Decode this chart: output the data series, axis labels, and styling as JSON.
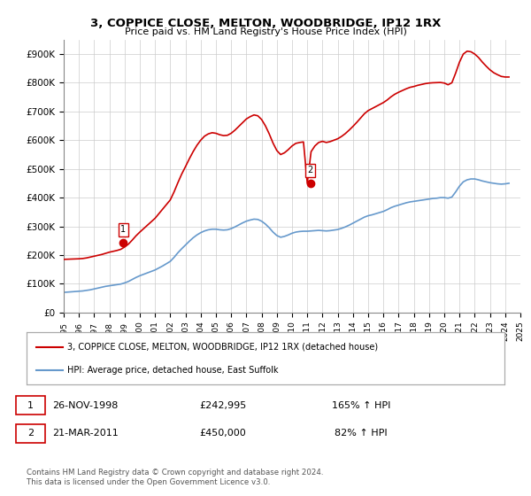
{
  "title": "3, COPPICE CLOSE, MELTON, WOODBRIDGE, IP12 1RX",
  "subtitle": "Price paid vs. HM Land Registry's House Price Index (HPI)",
  "xlabel": "",
  "ylabel": "",
  "ylim": [
    0,
    950000
  ],
  "yticks": [
    0,
    100000,
    200000,
    300000,
    400000,
    500000,
    600000,
    700000,
    800000,
    900000
  ],
  "ytick_labels": [
    "£0",
    "£100K",
    "£200K",
    "£300K",
    "£400K",
    "£500K",
    "£600K",
    "£700K",
    "£800K",
    "£900K"
  ],
  "hpi_color": "#6699cc",
  "price_color": "#cc0000",
  "marker_color": "#cc0000",
  "background_color": "#ffffff",
  "grid_color": "#cccccc",
  "legend_entries": [
    "3, COPPICE CLOSE, MELTON, WOODBRIDGE, IP12 1RX (detached house)",
    "HPI: Average price, detached house, East Suffolk"
  ],
  "sale1_label": "1",
  "sale1_date": "26-NOV-1998",
  "sale1_price": "£242,995",
  "sale1_hpi": "165% ↑ HPI",
  "sale2_label": "2",
  "sale2_date": "21-MAR-2011",
  "sale2_price": "£450,000",
  "sale2_hpi": "82% ↑ HPI",
  "footnote": "Contains HM Land Registry data © Crown copyright and database right 2024.\nThis data is licensed under the Open Government Licence v3.0.",
  "hpi_data": {
    "years": [
      1995.0,
      1995.25,
      1995.5,
      1995.75,
      1996.0,
      1996.25,
      1996.5,
      1996.75,
      1997.0,
      1997.25,
      1997.5,
      1997.75,
      1998.0,
      1998.25,
      1998.5,
      1998.75,
      1999.0,
      1999.25,
      1999.5,
      1999.75,
      2000.0,
      2000.25,
      2000.5,
      2000.75,
      2001.0,
      2001.25,
      2001.5,
      2001.75,
      2002.0,
      2002.25,
      2002.5,
      2002.75,
      2003.0,
      2003.25,
      2003.5,
      2003.75,
      2004.0,
      2004.25,
      2004.5,
      2004.75,
      2005.0,
      2005.25,
      2005.5,
      2005.75,
      2006.0,
      2006.25,
      2006.5,
      2006.75,
      2007.0,
      2007.25,
      2007.5,
      2007.75,
      2008.0,
      2008.25,
      2008.5,
      2008.75,
      2009.0,
      2009.25,
      2009.5,
      2009.75,
      2010.0,
      2010.25,
      2010.5,
      2010.75,
      2011.0,
      2011.25,
      2011.5,
      2011.75,
      2012.0,
      2012.25,
      2012.5,
      2012.75,
      2013.0,
      2013.25,
      2013.5,
      2013.75,
      2014.0,
      2014.25,
      2014.5,
      2014.75,
      2015.0,
      2015.25,
      2015.5,
      2015.75,
      2016.0,
      2016.25,
      2016.5,
      2016.75,
      2017.0,
      2017.25,
      2017.5,
      2017.75,
      2018.0,
      2018.25,
      2018.5,
      2018.75,
      2019.0,
      2019.25,
      2019.5,
      2019.75,
      2020.0,
      2020.25,
      2020.5,
      2020.75,
      2021.0,
      2021.25,
      2021.5,
      2021.75,
      2022.0,
      2022.25,
      2022.5,
      2022.75,
      2023.0,
      2023.25,
      2023.5,
      2023.75,
      2024.0,
      2024.25
    ],
    "values": [
      70000,
      71000,
      72000,
      73000,
      74000,
      75000,
      77000,
      79000,
      82000,
      85000,
      88000,
      91000,
      93000,
      95000,
      97000,
      99000,
      103000,
      108000,
      115000,
      122000,
      128000,
      133000,
      138000,
      143000,
      148000,
      155000,
      162000,
      170000,
      178000,
      192000,
      208000,
      222000,
      235000,
      248000,
      260000,
      270000,
      278000,
      284000,
      288000,
      290000,
      290000,
      288000,
      287000,
      288000,
      292000,
      298000,
      305000,
      312000,
      318000,
      322000,
      325000,
      324000,
      318000,
      308000,
      295000,
      280000,
      268000,
      262000,
      265000,
      270000,
      276000,
      280000,
      282000,
      283000,
      283000,
      284000,
      285000,
      286000,
      285000,
      284000,
      285000,
      287000,
      289000,
      293000,
      298000,
      304000,
      311000,
      318000,
      325000,
      332000,
      337000,
      340000,
      344000,
      348000,
      352000,
      358000,
      365000,
      370000,
      374000,
      378000,
      382000,
      385000,
      387000,
      389000,
      391000,
      393000,
      395000,
      397000,
      398000,
      400000,
      400000,
      398000,
      402000,
      420000,
      440000,
      455000,
      462000,
      465000,
      465000,
      462000,
      458000,
      455000,
      452000,
      450000,
      448000,
      447000,
      448000,
      450000
    ]
  },
  "price_data": {
    "years": [
      1995.0,
      1995.25,
      1995.5,
      1995.75,
      1996.0,
      1996.25,
      1996.5,
      1996.75,
      1997.0,
      1997.25,
      1997.5,
      1997.75,
      1998.0,
      1998.25,
      1998.5,
      1998.75,
      1999.0,
      1999.25,
      1999.5,
      1999.75,
      2000.0,
      2000.25,
      2000.5,
      2000.75,
      2001.0,
      2001.25,
      2001.5,
      2001.75,
      2002.0,
      2002.25,
      2002.5,
      2002.75,
      2003.0,
      2003.25,
      2003.5,
      2003.75,
      2004.0,
      2004.25,
      2004.5,
      2004.75,
      2005.0,
      2005.25,
      2005.5,
      2005.75,
      2006.0,
      2006.25,
      2006.5,
      2006.75,
      2007.0,
      2007.25,
      2007.5,
      2007.75,
      2008.0,
      2008.25,
      2008.5,
      2008.75,
      2009.0,
      2009.25,
      2009.5,
      2009.75,
      2010.0,
      2010.25,
      2010.5,
      2010.75,
      2011.0,
      2011.25,
      2011.5,
      2011.75,
      2012.0,
      2012.25,
      2012.5,
      2012.75,
      2013.0,
      2013.25,
      2013.5,
      2013.75,
      2014.0,
      2014.25,
      2014.5,
      2014.75,
      2015.0,
      2015.25,
      2015.5,
      2015.75,
      2016.0,
      2016.25,
      2016.5,
      2016.75,
      2017.0,
      2017.25,
      2017.5,
      2017.75,
      2018.0,
      2018.25,
      2018.5,
      2018.75,
      2019.0,
      2019.25,
      2019.5,
      2019.75,
      2020.0,
      2020.25,
      2020.5,
      2020.75,
      2021.0,
      2021.25,
      2021.5,
      2021.75,
      2022.0,
      2022.25,
      2022.5,
      2022.75,
      2023.0,
      2023.25,
      2023.5,
      2023.75,
      2024.0,
      2024.25
    ],
    "values": [
      185000,
      185500,
      186000,
      186500,
      187000,
      188000,
      190000,
      193000,
      196000,
      199000,
      202000,
      206000,
      210000,
      213000,
      216000,
      220000,
      228000,
      238000,
      252000,
      267000,
      280000,
      292000,
      304000,
      316000,
      328000,
      344000,
      360000,
      376000,
      392000,
      420000,
      452000,
      482000,
      508000,
      535000,
      560000,
      582000,
      600000,
      614000,
      622000,
      626000,
      624000,
      619000,
      616000,
      617000,
      624000,
      635000,
      648000,
      661000,
      674000,
      682000,
      688000,
      685000,
      672000,
      650000,
      622000,
      590000,
      564000,
      550000,
      556000,
      567000,
      580000,
      589000,
      592000,
      594000,
      450000,
      560000,
      580000,
      592000,
      596000,
      592000,
      595000,
      600000,
      605000,
      613000,
      623000,
      635000,
      648000,
      662000,
      677000,
      692000,
      703000,
      710000,
      717000,
      724000,
      731000,
      740000,
      751000,
      760000,
      767000,
      773000,
      779000,
      784000,
      787000,
      791000,
      794000,
      797000,
      799000,
      800000,
      800500,
      801000,
      799000,
      793000,
      800000,
      834000,
      872000,
      900000,
      910000,
      908000,
      900000,
      888000,
      872000,
      858000,
      845000,
      835000,
      828000,
      822000,
      820000,
      820000
    ]
  },
  "sale_points": [
    {
      "year": 1998.9,
      "price": 242995,
      "label": "1"
    },
    {
      "year": 2011.2,
      "price": 450000,
      "label": "2"
    }
  ],
  "xlim": [
    1995,
    2025
  ],
  "xticks": [
    1995,
    1996,
    1997,
    1998,
    1999,
    2000,
    2001,
    2002,
    2003,
    2004,
    2005,
    2006,
    2007,
    2008,
    2009,
    2010,
    2011,
    2012,
    2013,
    2014,
    2015,
    2016,
    2017,
    2018,
    2019,
    2020,
    2021,
    2022,
    2023,
    2024,
    2025
  ]
}
